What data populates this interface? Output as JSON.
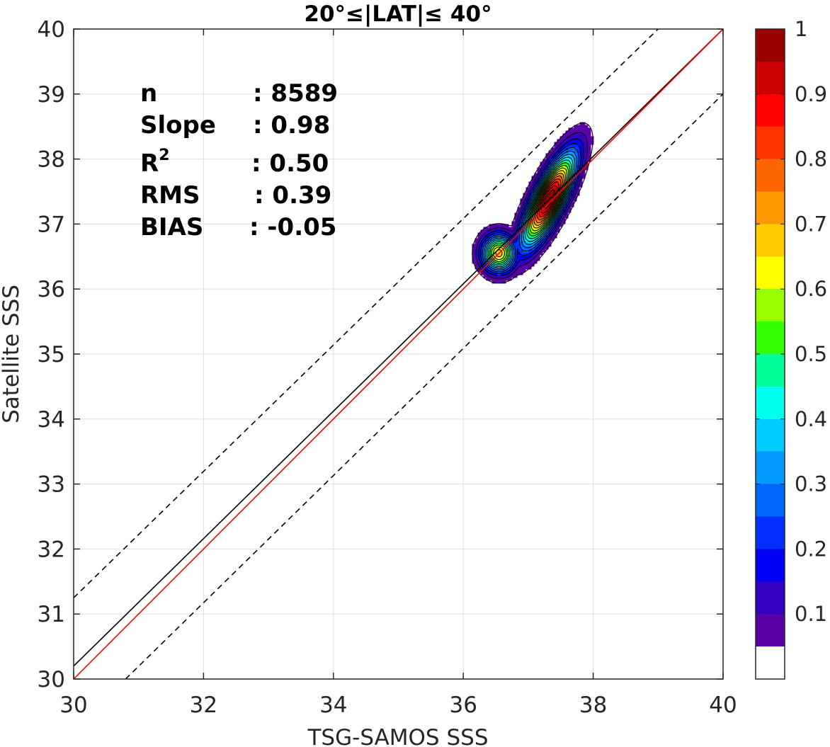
{
  "chart_data": {
    "type": "contour",
    "title": "20°≤|LAT|≤ 40°",
    "xlabel": "TSG-SAMOS SSS",
    "ylabel": "Satellite SSS",
    "xlim": [
      30,
      40
    ],
    "ylim": [
      30,
      40
    ],
    "xticks": [
      30,
      32,
      34,
      36,
      38,
      40
    ],
    "yticks": [
      30,
      31,
      32,
      33,
      34,
      35,
      36,
      37,
      38,
      39,
      40
    ],
    "grid": true,
    "stats": [
      {
        "label": "n",
        "value": ": 8589"
      },
      {
        "label": "Slope",
        "value": ": 0.98"
      },
      {
        "label": "R",
        "sup": "2",
        "value": ": 0.50"
      },
      {
        "label": "RMS",
        "value": ": 0.39"
      },
      {
        "label": "BIAS",
        "value": ": -0.05"
      }
    ],
    "lines": [
      {
        "style": "solid",
        "color": "#000000",
        "x": [
          30,
          40
        ],
        "y": [
          30.2,
          40
        ]
      },
      {
        "style": "solid",
        "color": "#ff0000",
        "x": [
          30,
          40
        ],
        "y": [
          30,
          40
        ]
      },
      {
        "style": "dashed",
        "color": "#000000",
        "x": [
          30,
          39
        ],
        "y": [
          31.25,
          40
        ]
      },
      {
        "style": "dashed",
        "color": "#000000",
        "x": [
          30.8,
          40
        ],
        "y": [
          30,
          39
        ]
      }
    ],
    "density_peaks": [
      {
        "x": 37.32,
        "y": 37.38,
        "peak": 1.0,
        "sx": 0.17,
        "sy": 0.48,
        "tilt": 0.45
      },
      {
        "x": 36.55,
        "y": 36.55,
        "peak": 0.68,
        "sx": 0.18,
        "sy": 0.2,
        "tilt": 0.0
      }
    ],
    "colorbar": {
      "range": [
        0,
        1
      ],
      "ticks": [
        0.1,
        0.2,
        0.3,
        0.4,
        0.5,
        0.6,
        0.7,
        0.8,
        0.9,
        1
      ],
      "tick_labels": [
        "0.1",
        "0.2",
        "0.3",
        "0.4",
        "0.5",
        "0.6",
        "0.7",
        "0.8",
        "0.9",
        "1"
      ],
      "colors": [
        "#ffffff",
        "#5b00a8",
        "#3300c0",
        "#0000f5",
        "#0030ff",
        "#0066ff",
        "#0099ff",
        "#00ccff",
        "#00ffee",
        "#00ff99",
        "#33ff00",
        "#99ff00",
        "#ffff00",
        "#ffcc00",
        "#ff9900",
        "#ff6600",
        "#ff3300",
        "#ff0000",
        "#cc0000",
        "#990000"
      ]
    }
  }
}
